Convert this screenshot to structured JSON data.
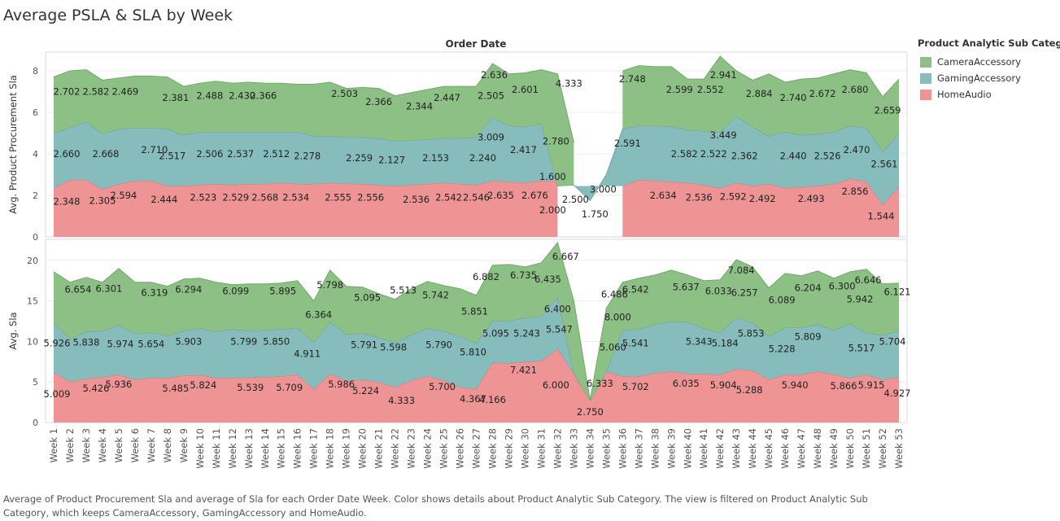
{
  "title": "Average PSLA & SLA by Week",
  "caption": "Average of Product Procurement Sla and average of Sla for each Order Date Week.  Color shows details about Product Analytic Sub Category. The view is filtered on Product Analytic Sub Category, which keeps CameraAccessory, GamingAccessory and HomeAudio.",
  "legend": {
    "title": "Product Analytic Sub Category",
    "items": [
      {
        "label": "CameraAccessory",
        "color": "#8cc084"
      },
      {
        "label": "GamingAccessory",
        "color": "#86bcbc"
      },
      {
        "label": "HomeAudio",
        "color": "#ee9494"
      }
    ]
  },
  "chart_data": {
    "type": "area",
    "stacked": true,
    "xlabel": "Order Date",
    "x": [
      "Week 1",
      "Week 2",
      "Week 3",
      "Week 4",
      "Week 5",
      "Week 6",
      "Week 7",
      "Week 8",
      "Week 9",
      "Week 10",
      "Week 11",
      "Week 12",
      "Week 13",
      "Week 14",
      "Week 15",
      "Week 16",
      "Week 17",
      "Week 18",
      "Week 19",
      "Week 20",
      "Week 21",
      "Week 22",
      "Week 23",
      "Week 24",
      "Week 25",
      "Week 26",
      "Week 27",
      "Week 28",
      "Week 29",
      "Week 30",
      "Week 31",
      "Week 32",
      "Week 33",
      "Week 34",
      "Week 35",
      "Week 36",
      "Week 37",
      "Week 38",
      "Week 39",
      "Week 40",
      "Week 41",
      "Week 42",
      "Week 43",
      "Week 44",
      "Week 45",
      "Week 46",
      "Week 47",
      "Week 48",
      "Week 49",
      "Week 50",
      "Week 51",
      "Week 52",
      "Week 53"
    ],
    "colors": {
      "CameraAccessory": "#8cc084",
      "GamingAccessory": "#86bcbc",
      "HomeAudio": "#ee9494"
    },
    "panels": [
      {
        "ylabel": "Avg. Product Procurement Sla",
        "ylim": [
          0,
          8.9
        ],
        "yticks": [
          0,
          2,
          4,
          6,
          8
        ],
        "series": [
          {
            "name": "HomeAudio",
            "values": [
              2.348,
              2.6,
              2.305,
              2.594,
              2.444,
              2.5,
              2.523,
              2.529,
              2.55,
              2.568,
              2.534,
              2.555,
              2.556,
              2.53,
              2.52,
              2.536,
              2.542,
              2.546,
              2.635,
              2.6,
              2.676,
              2.0,
              null,
              null,
              null,
              null,
              2.634,
              2.58,
              2.536,
              2.56,
              2.592,
              2.492,
              2.52,
              2.493,
              2.6,
              2.856,
              1.544,
              2.4
            ]
          },
          {
            "name": "GamingAccessory",
            "values": [
              2.66,
              2.9,
              2.668,
              2.71,
              2.517,
              2.506,
              2.537,
              2.512,
              2.278,
              2.259,
              2.127,
              2.153,
              2.24,
              3.009,
              2.417,
              2.78,
              1.6,
              2.5,
              1.75,
              3.0,
              2.591,
              2.582,
              2.522,
              3.449,
              2.362,
              2.44,
              2.526,
              2.47,
              2.561,
              2.561
            ]
          },
          {
            "name": "CameraAccessory",
            "values": [
              2.702,
              2.582,
              2.469,
              2.381,
              2.488,
              2.43,
              2.366,
              2.503,
              2.366,
              2.344,
              2.447,
              2.505,
              2.636,
              2.601,
              4.333,
              2.748,
              2.599,
              2.552,
              2.941,
              2.884,
              2.74,
              2.672,
              2.68,
              2.659
            ]
          }
        ]
      },
      {
        "ylabel": "Avg. Sla",
        "ylim": [
          0,
          22.6
        ],
        "yticks": [
          0,
          5,
          10,
          15,
          20
        ],
        "series": [
          {
            "name": "HomeAudio",
            "values": [
              5.009,
              5.426,
              5.936,
              5.485,
              5.824,
              5.539,
              5.709,
              5.986,
              5.224,
              4.333,
              5.7,
              4.367,
              4.166,
              7.421,
              6.0,
              5.702,
              6.035,
              5.904,
              5.288,
              5.94,
              5.866,
              5.915,
              4.927
            ]
          },
          {
            "name": "GamingAccessory",
            "values": [
              5.926,
              5.838,
              5.974,
              5.654,
              5.903,
              5.799,
              5.85,
              4.911,
              5.791,
              5.598,
              5.79,
              5.81,
              5.095,
              5.243,
              5.547,
              6.4,
              2.75,
              6.333,
              5.06,
              5.541,
              5.343,
              5.184,
              5.853,
              5.228,
              5.809,
              5.517,
              5.704
            ]
          },
          {
            "name": "CameraAccessory",
            "values": [
              6.654,
              6.301,
              6.319,
              6.294,
              6.099,
              5.895,
              5.095,
              6.364,
              5.798,
              5.513,
              5.742,
              5.851,
              6.882,
              6.735,
              6.435,
              6.667,
              6.486,
              8.0,
              6.542,
              5.637,
              6.033,
              6.257,
              7.084,
              6.089,
              6.204,
              6.3,
              6.646,
              5.942,
              6.121
            ]
          }
        ]
      }
    ],
    "data_labels": {
      "panel1": [
        "2.702",
        "2.582",
        "2.469",
        "2.381",
        "2.488",
        "2.430",
        "2.366",
        "2.503",
        "2.366",
        "2.344",
        "2.447",
        "2.505",
        "2.636",
        "2.601",
        "4.333",
        "2.748",
        "2.599",
        "2.552",
        "2.941",
        "2.884",
        "2.740",
        "2.672",
        "2.680",
        "2.659",
        "2.660",
        "2.668",
        "2.710",
        "2.517",
        "2.506",
        "2.537",
        "2.512",
        "2.278",
        "2.259",
        "2.127",
        "2.153",
        "2.240",
        "3.009",
        "2.417",
        "2.780",
        "1.600",
        "2.591",
        "2.582",
        "2.522",
        "3.449",
        "2.362",
        "2.440",
        "2.526",
        "2.470",
        "2.561",
        "3.000",
        "2.500",
        "1.750",
        "2.348",
        "2.305",
        "2.594",
        "2.444",
        "2.523",
        "2.529",
        "2.568",
        "2.534",
        "2.555",
        "2.556",
        "2.536",
        "2.542",
        "2.546",
        "2.635",
        "2.676",
        "2.000",
        "2.634",
        "2.536",
        "2.592",
        "2.492",
        "2.493",
        "2.856",
        "1.544"
      ],
      "panel2": [
        "6.654",
        "6.301",
        "6.319",
        "6.294",
        "6.099",
        "5.895",
        "6.364",
        "5.798",
        "5.095",
        "5.513",
        "5.742",
        "5.851",
        "6.882",
        "6.735",
        "6.435",
        "6.667",
        "6.486",
        "8.000",
        "6.542",
        "5.637",
        "6.033",
        "6.257",
        "7.084",
        "6.089",
        "6.204",
        "6.300",
        "6.646",
        "5.942",
        "6.121",
        "5.926",
        "5.838",
        "5.974",
        "5.654",
        "5.903",
        "5.799",
        "5.850",
        "4.911",
        "5.791",
        "5.598",
        "5.790",
        "5.810",
        "5.095",
        "5.243",
        "5.547",
        "6.400",
        "5.060",
        "5.541",
        "5.343",
        "5.184",
        "5.853",
        "5.228",
        "5.809",
        "5.517",
        "5.704",
        "6.333",
        "2.750",
        "5.009",
        "5.426",
        "5.936",
        "5.485",
        "5.824",
        "5.539",
        "5.709",
        "5.986",
        "5.224",
        "4.333",
        "5.700",
        "4.367",
        "4.166",
        "7.421",
        "6.000",
        "5.702",
        "6.035",
        "5.904",
        "5.288",
        "5.940",
        "5.866",
        "5.915",
        "4.927"
      ]
    }
  }
}
